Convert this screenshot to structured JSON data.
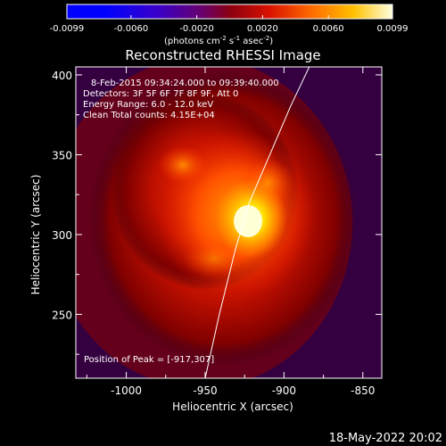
{
  "colorbar": {
    "tick_labels": [
      "-0.0099",
      "-0.0060",
      "-0.0020",
      "0.0020",
      "0.0060",
      "0.0099"
    ],
    "tick_values": [
      -0.0099,
      -0.006,
      -0.002,
      0.002,
      0.006,
      0.0099
    ],
    "range": [
      -0.0099,
      0.0099
    ],
    "units_prefix": "(photons cm",
    "units_exp1": "-2",
    "units_mid": " s",
    "units_exp2": "-1",
    "units_mid2": " asec",
    "units_exp3": "-2",
    "units_suffix": ")"
  },
  "chart_data": {
    "type": "heatmap",
    "title": "Reconstructed RHESSI Image",
    "xlabel": "Heliocentric X (arcsec)",
    "ylabel": "Heliocentric Y (arcsec)",
    "xlim": [
      -1032,
      -838
    ],
    "ylim": [
      210,
      405
    ],
    "x_ticks": [
      -1000,
      -950,
      -900,
      -850
    ],
    "x_tick_labels": [
      "-1000",
      "-950",
      "-900",
      "-850"
    ],
    "y_ticks": [
      250,
      300,
      350,
      400
    ],
    "y_tick_labels": [
      "250",
      "300",
      "350",
      "400"
    ],
    "peak_position": [
      -917,
      307
    ],
    "colormap": "fire",
    "limb_curve": [
      [
        -950,
        210
      ],
      [
        -941,
        250
      ],
      [
        -931,
        290
      ],
      [
        -922,
        320
      ],
      [
        -909,
        350
      ],
      [
        -896,
        380
      ],
      [
        -884,
        405
      ]
    ]
  },
  "annotations": {
    "time_range": "8-Feb-2015 09:34:24.000 to 09:39:40.000",
    "detectors": "Detectors: 3F 5F 6F 7F 8F 9F, Att 0",
    "energy_range": "Energy Range: 6.0 - 12.0 keV",
    "clean": "Clean     Total counts: 4.15E+04",
    "peak": "Position of Peak = [-917,307]"
  },
  "footer": "18-May-2022 20:02"
}
